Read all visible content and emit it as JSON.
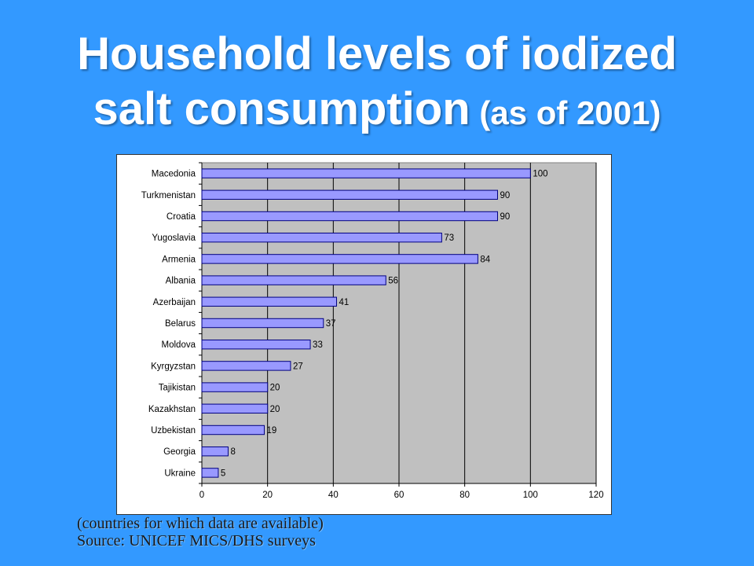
{
  "slide": {
    "title_line1": "Household levels of iodized",
    "title_line2_main": "salt consumption",
    "title_line2_sub": " (as of 2001)",
    "note_line1": "(countries for which data are available)",
    "note_line2": "Source: UNICEF MICS/DHS surveys",
    "background_color": "#3399ff"
  },
  "chart_data": {
    "type": "bar",
    "orientation": "horizontal",
    "categories": [
      "Macedonia",
      "Turkmenistan",
      "Croatia",
      "Yugoslavia",
      "Armenia",
      "Albania",
      "Azerbaijan",
      "Belarus",
      "Moldova",
      "Kyrgyzstan",
      "Tajikistan",
      "Kazakhstan",
      "Uzbekistan",
      "Georgia",
      "Ukraine"
    ],
    "values": [
      100,
      90,
      90,
      73,
      84,
      56,
      41,
      37,
      33,
      27,
      20,
      20,
      19,
      8,
      5
    ],
    "xlim": [
      0,
      120
    ],
    "x_ticks": [
      0,
      20,
      40,
      60,
      80,
      100,
      120
    ],
    "grid": true,
    "plot_background": "#c0c0c0",
    "bar_color": "#9999ff",
    "bar_border_color": "#000080"
  }
}
